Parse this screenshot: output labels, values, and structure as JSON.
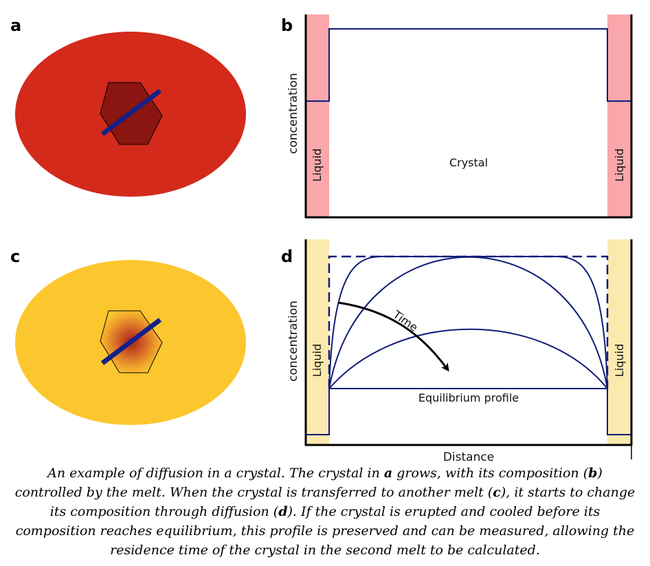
{
  "panels": {
    "a": {
      "letter": "a"
    },
    "b": {
      "letter": "b",
      "ylabel": "concentration",
      "liquid_left": "Liquid",
      "liquid_right": "Liquid",
      "crystal": "Crystal"
    },
    "c": {
      "letter": "c"
    },
    "d": {
      "letter": "d",
      "ylabel": "concentration",
      "xlabel": "Distance",
      "liquid_left": "Liquid",
      "liquid_right": "Liquid",
      "time": "Time",
      "equilibrium": "Equilibrium profile"
    }
  },
  "caption": {
    "p1": "An example of diffusion in a crystal. The crystal in ",
    "b1": "a",
    "p2": " grows, with its composition (",
    "b2": "b",
    "p3": ") controlled by the melt. When the crystal is transferred to another melt (",
    "b3": "c",
    "p4": "), it starts to change its composition through diffusion (",
    "b4": "d",
    "p5": "). If the crystal is erupted and cooled before its composition reaches equilibrium, this profile is preserved and can be measured, allowing the residence time of the crystal in the second melt to be calculated."
  },
  "colors": {
    "melt_a": "#d32a1c",
    "crystal_a": "#8b1510",
    "melt_c": "#fcc62e",
    "liquid_b": "#f9a7ab",
    "liquid_d": "#fbe9ae",
    "profile": "#0f1b78"
  }
}
